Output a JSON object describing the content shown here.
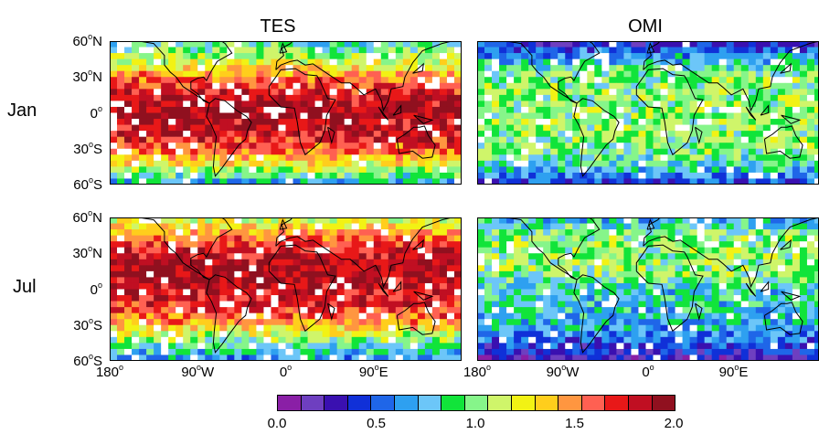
{
  "columns": [
    "TES",
    "OMI"
  ],
  "rows": [
    "Jan",
    "Jul"
  ],
  "lat_labels": [
    {
      "deg": "60",
      "hemi": "N"
    },
    {
      "deg": "30",
      "hemi": "N"
    },
    {
      "deg": "0",
      "hemi": ""
    },
    {
      "deg": "30",
      "hemi": "S"
    },
    {
      "deg": "60",
      "hemi": "S"
    }
  ],
  "lon_labels": [
    {
      "deg": "180",
      "hemi": ""
    },
    {
      "deg": "90",
      "hemi": "W"
    },
    {
      "deg": "0",
      "hemi": ""
    },
    {
      "deg": "90",
      "hemi": "E"
    }
  ],
  "colorbar": {
    "min": 0.0,
    "max": 2.0,
    "labels": [
      "0.0",
      "0.5",
      "1.0",
      "1.5",
      "2.0"
    ],
    "colors": [
      "#8a1fa6",
      "#6e3fc0",
      "#3a10b0",
      "#1030d8",
      "#1f66e8",
      "#2ea0f0",
      "#6cc6f8",
      "#11e43a",
      "#86f58a",
      "#cff56a",
      "#f2f214",
      "#ffce1c",
      "#ff9640",
      "#ff6052",
      "#e81818",
      "#c00f22",
      "#90101f"
    ]
  },
  "chart_data": {
    "type": "heatmap",
    "title": "",
    "xlabel": "",
    "ylabel": "",
    "x_range": [
      -180,
      180
    ],
    "y_range": [
      -60,
      60
    ],
    "panels": [
      {
        "column": "TES",
        "row": "Jan",
        "zonal_profile_lat": [
          60,
          45,
          30,
          15,
          0,
          -15,
          -30,
          -45,
          -60
        ],
        "zonal_profile_value": [
          0.8,
          1.1,
          1.5,
          1.8,
          1.9,
          1.8,
          1.6,
          1.2,
          0.6
        ]
      },
      {
        "column": "OMI",
        "row": "Jan",
        "zonal_profile_lat": [
          60,
          45,
          30,
          15,
          0,
          -15,
          -30,
          -45,
          -60
        ],
        "zonal_profile_value": [
          0.3,
          0.7,
          1.0,
          1.0,
          1.0,
          1.0,
          1.0,
          0.8,
          0.4
        ]
      },
      {
        "column": "TES",
        "row": "Jul",
        "zonal_profile_lat": [
          60,
          45,
          30,
          15,
          0,
          -15,
          -30,
          -45,
          -60
        ],
        "zonal_profile_value": [
          1.1,
          1.5,
          1.8,
          1.9,
          1.8,
          1.7,
          1.4,
          0.9,
          0.6
        ]
      },
      {
        "column": "OMI",
        "row": "Jul",
        "zonal_profile_lat": [
          60,
          45,
          30,
          15,
          0,
          -15,
          -30,
          -45,
          -60
        ],
        "zonal_profile_value": [
          0.7,
          1.0,
          1.0,
          1.0,
          0.8,
          0.8,
          0.7,
          0.5,
          0.2
        ]
      }
    ]
  }
}
